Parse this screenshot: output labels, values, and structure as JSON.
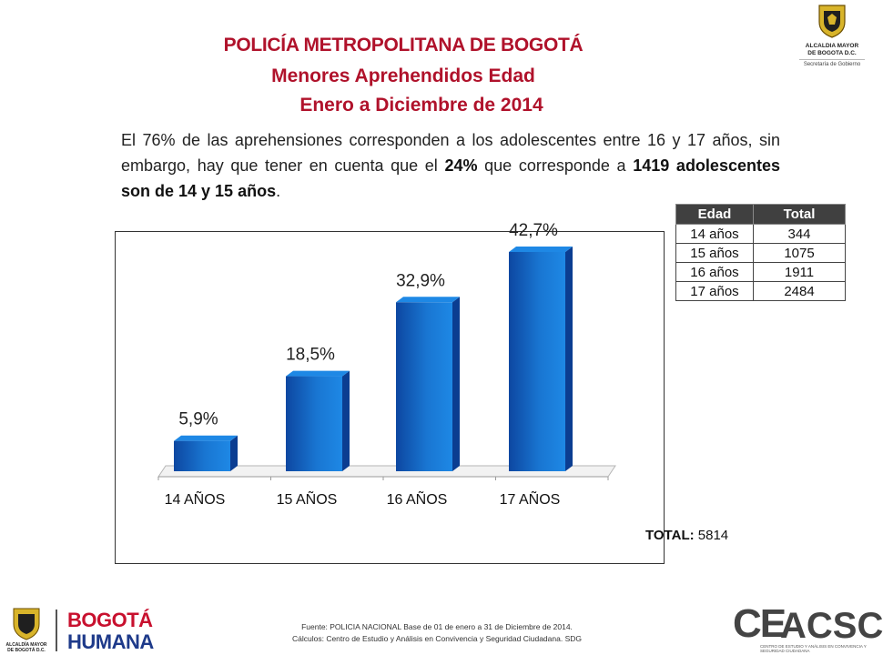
{
  "header": {
    "title": "POLICÍA METROPOLITANA DE BOGOTÁ",
    "subtitle": "Menores Aprehendidos Edad",
    "period": "Enero a Diciembre de 2014"
  },
  "paragraph": {
    "part1": "El 76% de las aprehensiones corresponden a los adolescentes entre 16 y 17 años, sin embargo, hay que tener en cuenta que el ",
    "pct": "24%",
    "part2": " que corresponde a ",
    "bold_end": "1419 adolescentes son de 14 y 15 años",
    "end": "."
  },
  "logos": {
    "top_right_line1": "ALCALDIA MAYOR",
    "top_right_line2": "DE BOGOTA D.C.",
    "top_right_sub": "Secretaría de Gobierno",
    "bl_mini": "ALCALDÍA MAYOR DE BOGOTÁ D.C.",
    "bl_brand1": "BOGOTÁ",
    "bl_brand2": "HUMANA",
    "br_brand_a": "CE",
    "br_brand_b": "ACSC",
    "br_tagline": "CENTRO DE ESTUDIO Y ANÁLISIS EN CONVIVENCIA Y SEGURIDAD CIUDADANA"
  },
  "table": {
    "headers": [
      "Edad",
      "Total"
    ],
    "rows": [
      [
        "14 años",
        "344"
      ],
      [
        "15 años",
        "1075"
      ],
      [
        "16 años",
        "1911"
      ],
      [
        "17 años",
        "2484"
      ]
    ]
  },
  "total": {
    "label": "TOTAL:",
    "value": "5814"
  },
  "footer": {
    "line1": "Fuente: POLICIA NACIONAL Base de 01 de enero a 31 de Diciembre de 2014.",
    "line2": "Cálculos: Centro de Estudio y Análisis en Convivencia y Seguridad Ciudadana. SDG"
  },
  "colors": {
    "title": "#b0122b",
    "bar": "#1565c0",
    "bar_dark": "#0b3d91"
  },
  "chart_data": {
    "type": "bar",
    "categories": [
      "14 AÑOS",
      "15 AÑOS",
      "16 AÑOS",
      "17 AÑOS"
    ],
    "values": [
      5.9,
      18.5,
      32.9,
      42.7
    ],
    "data_labels": [
      "5,9%",
      "18,5%",
      "32,9%",
      "42,7%"
    ],
    "title": "",
    "xlabel": "",
    "ylabel": "",
    "ylim": [
      0,
      45
    ],
    "grid": false,
    "legend": "none",
    "style": "3d"
  }
}
